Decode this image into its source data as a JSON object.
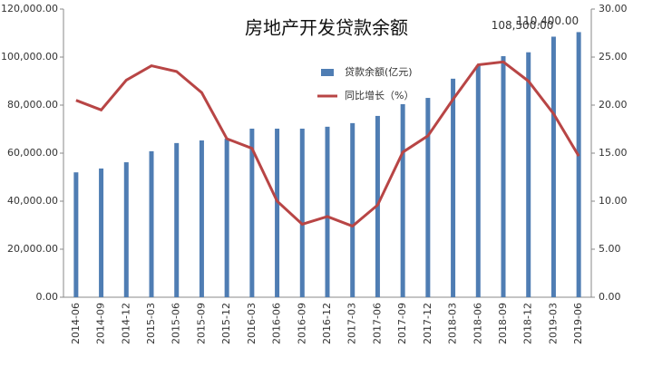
{
  "chart_data": {
    "type": "bar-line",
    "title": "房地产开发贷款余额",
    "categories": [
      "2014-06",
      "2014-09",
      "2014-12",
      "2015-03",
      "2015-06",
      "2015-09",
      "2015-12",
      "2016-03",
      "2016-06",
      "2016-09",
      "2016-12",
      "2017-03",
      "2017-06",
      "2017-09",
      "2017-12",
      "2018-03",
      "2018-06",
      "2018-09",
      "2018-12",
      "2019-03",
      "2019-06"
    ],
    "series": [
      {
        "name": "贷款余额(亿元)",
        "type": "bar",
        "color": "#4f7db3",
        "values": [
          52000,
          53600,
          56200,
          60800,
          64200,
          65300,
          66000,
          70200,
          70200,
          70200,
          71000,
          72500,
          75500,
          80400,
          83000,
          91000,
          96600,
          100400,
          102000,
          108500,
          110400
        ],
        "value_labels": [
          null,
          null,
          null,
          null,
          null,
          null,
          null,
          null,
          null,
          null,
          null,
          null,
          null,
          null,
          null,
          null,
          null,
          null,
          null,
          "108,500.00",
          "110,400.00"
        ]
      },
      {
        "name": "同比增长（%）",
        "type": "line",
        "axis": "y2",
        "color": "#b84545",
        "values": [
          20.5,
          19.5,
          22.6,
          24.1,
          23.5,
          21.3,
          16.5,
          15.5,
          10.0,
          7.6,
          8.4,
          7.4,
          9.6,
          15.1,
          16.8,
          20.6,
          24.2,
          24.5,
          22.5,
          19.1,
          14.7
        ]
      }
    ],
    "ylim": [
      0,
      120000
    ],
    "yticks": [
      {
        "value": 0,
        "label": "0.00"
      },
      {
        "value": 20000,
        "label": "20,000.00"
      },
      {
        "value": 40000,
        "label": "40,000.00"
      },
      {
        "value": 60000,
        "label": "60,000.00"
      },
      {
        "value": 80000,
        "label": "80,000.00"
      },
      {
        "value": 100000,
        "label": "100,000.00"
      },
      {
        "value": 120000,
        "label": "120,000.00"
      }
    ],
    "y2lim": [
      0,
      30
    ],
    "y2ticks": [
      {
        "value": 0,
        "label": "0.00"
      },
      {
        "value": 5,
        "label": "5.00"
      },
      {
        "value": 10,
        "label": "10.00"
      },
      {
        "value": 15,
        "label": "15.00"
      },
      {
        "value": 20,
        "label": "20.00"
      },
      {
        "value": 25,
        "label": "25.00"
      },
      {
        "value": 30,
        "label": "30.00"
      }
    ],
    "grid": false
  }
}
